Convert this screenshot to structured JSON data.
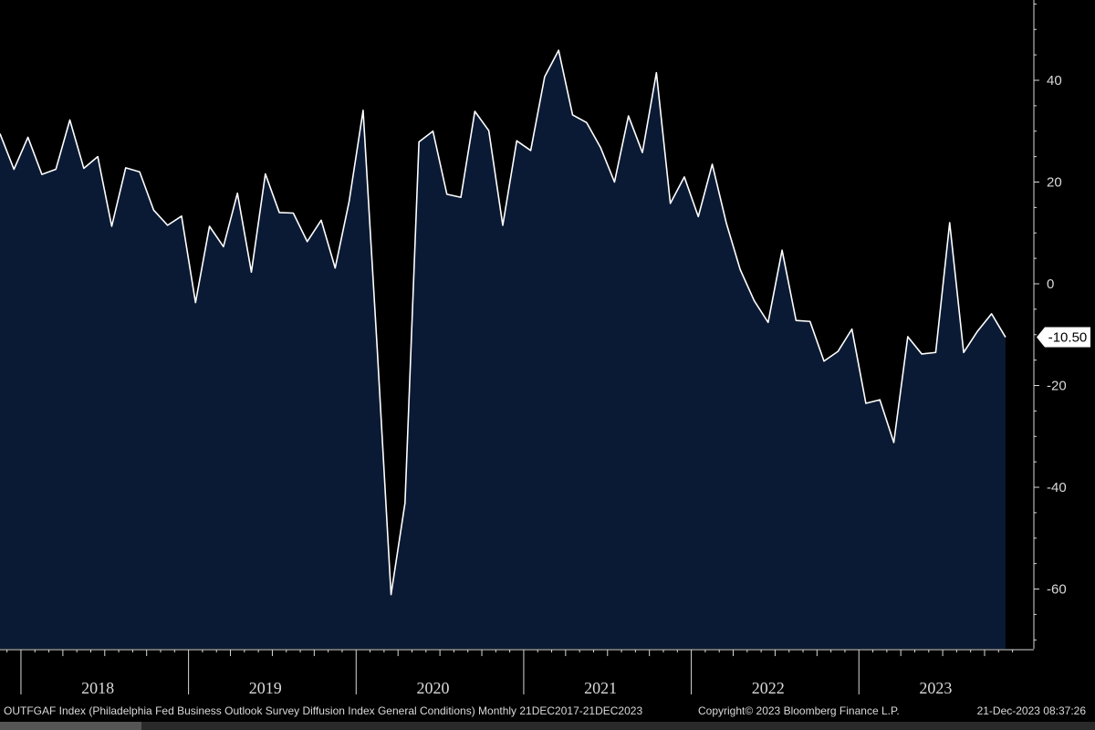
{
  "chart_data": {
    "type": "area",
    "title": "",
    "xlabel": "",
    "ylabel": "",
    "ylim": [
      -72,
      58
    ],
    "yticks": [
      40,
      20,
      0,
      -20,
      -40,
      -60
    ],
    "x_year_labels": [
      "2018",
      "2019",
      "2020",
      "2021",
      "2022",
      "2023"
    ],
    "x": [
      "2017-12",
      "2018-01",
      "2018-02",
      "2018-03",
      "2018-04",
      "2018-05",
      "2018-06",
      "2018-07",
      "2018-08",
      "2018-09",
      "2018-10",
      "2018-11",
      "2018-12",
      "2019-01",
      "2019-02",
      "2019-03",
      "2019-04",
      "2019-05",
      "2019-06",
      "2019-07",
      "2019-08",
      "2019-09",
      "2019-10",
      "2019-11",
      "2019-12",
      "2020-01",
      "2020-02",
      "2020-03",
      "2020-04",
      "2020-05",
      "2020-06",
      "2020-07",
      "2020-08",
      "2020-09",
      "2020-10",
      "2020-11",
      "2020-12",
      "2021-01",
      "2021-02",
      "2021-03",
      "2021-04",
      "2021-05",
      "2021-06",
      "2021-07",
      "2021-08",
      "2021-09",
      "2021-10",
      "2021-11",
      "2021-12",
      "2022-01",
      "2022-02",
      "2022-03",
      "2022-04",
      "2022-05",
      "2022-06",
      "2022-07",
      "2022-08",
      "2022-09",
      "2022-10",
      "2022-11",
      "2022-12",
      "2023-01",
      "2023-02",
      "2023-03",
      "2023-04",
      "2023-05",
      "2023-06",
      "2023-07",
      "2023-08",
      "2023-09",
      "2023-10",
      "2023-11",
      "2023-12"
    ],
    "series": [
      {
        "values": [
          29.5,
          22.5,
          28.8,
          21.5,
          22.5,
          32.2,
          22.7,
          25.0,
          11.3,
          22.8,
          22.0,
          14.5,
          11.5,
          13.3,
          -3.7,
          11.3,
          7.3,
          17.8,
          2.3,
          21.6,
          14.0,
          13.9,
          8.3,
          12.5,
          3.1,
          16.2,
          34.1,
          -12.3,
          -61.1,
          -43.1,
          27.9,
          30.0,
          17.6,
          17.0,
          33.9,
          30.1,
          11.5,
          28.1,
          26.2,
          40.7,
          45.9,
          33.2,
          31.7,
          26.8,
          20.0,
          33.0,
          25.8,
          41.5,
          15.8,
          21.0,
          13.2,
          23.5,
          12.0,
          2.8,
          -3.3,
          -7.6,
          6.6,
          -7.2,
          -7.4,
          -15.2,
          -13.3,
          -8.9,
          -23.5,
          -22.8,
          -31.2,
          -10.4,
          -13.8,
          -13.5,
          12.0,
          -13.5,
          -9.3,
          -5.9,
          -10.5
        ]
      }
    ],
    "last_value_label": "-10.50",
    "colors": {
      "background": "#000000",
      "area_fill": "#0b1a34",
      "line": "#ffffff",
      "axis": "#d9d9d9"
    }
  },
  "footer": {
    "description": "OUTFGAF Index (Philadelphia Fed Business Outlook Survey Diffusion Index General Conditions) Monthly 21DEC2017-21DEC2023",
    "copyright": "Copyright© 2023 Bloomberg Finance L.P.",
    "timestamp": "21-Dec-2023 08:37:26"
  }
}
